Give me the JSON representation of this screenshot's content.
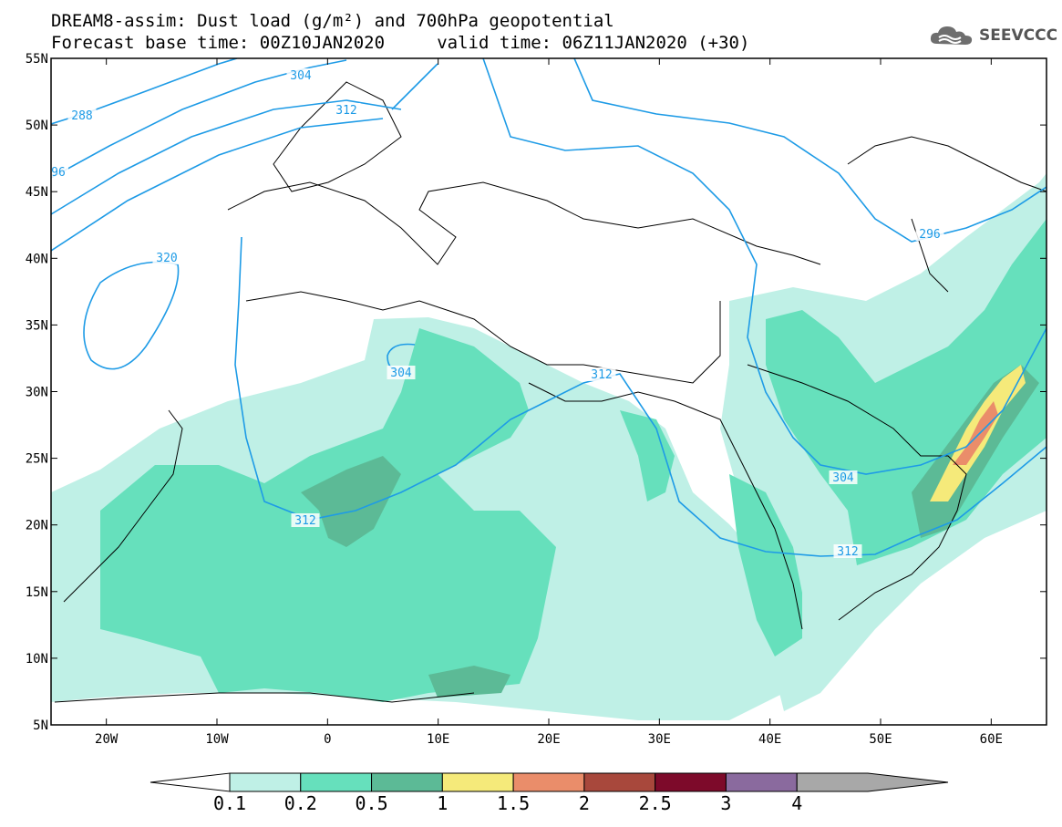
{
  "header": {
    "line1": "DREAM8-assim: Dust load (g/m²) and 700hPa geopotential",
    "line2": "Forecast base time: 00Z10JAN2020     valid time: 06Z11JAN2020 (+30)"
  },
  "logo": {
    "text": "SEEVCCC",
    "icon": "cloud-icon"
  },
  "map": {
    "lon_range": [
      -25,
      65
    ],
    "lat_range": [
      5,
      55
    ],
    "lon_ticks": [
      "20W",
      "10W",
      "0",
      "10E",
      "20E",
      "30E",
      "40E",
      "50E",
      "60E"
    ],
    "lat_ticks": [
      "55N",
      "50N",
      "45N",
      "40N",
      "35N",
      "30N",
      "25N",
      "20N",
      "15N",
      "10N",
      "5N"
    ],
    "contour_color": "#1e9be6",
    "contour_labels": [
      "304",
      "288",
      "312",
      "96",
      "320",
      "304",
      "312",
      "296",
      "304",
      "312",
      "312"
    ]
  },
  "legend": {
    "tick_labels": [
      "0.1",
      "0.2",
      "0.5",
      "1",
      "1.5",
      "2",
      "2.5",
      "3",
      "4"
    ],
    "colors": [
      "#bff0e6",
      "#66e0bc",
      "#5cba96",
      "#f5ea7a",
      "#ea8d6a",
      "#a8483c",
      "#7d0a2a",
      "#8a6a9e",
      "#a8a8a8"
    ]
  }
}
